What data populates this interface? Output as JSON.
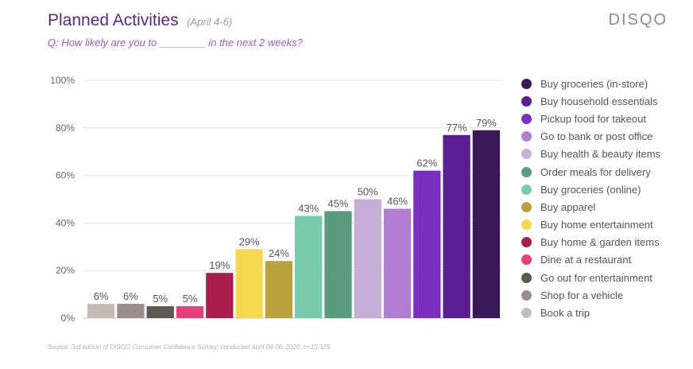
{
  "header": {
    "title": "Planned Activities",
    "date_range": "(April 4-6)",
    "subtitle": "Q: How likely are you to ________ in the next 2 weeks?",
    "brand": "DISQO"
  },
  "footer": {
    "source": "Source: 3rd edition of DISQO Consumer Confidence Survey; conducted April 04-06, 2020; n=10,925"
  },
  "chart_data": {
    "type": "bar",
    "title": "Planned Activities",
    "ylim": [
      0,
      100
    ],
    "yticks": [
      "0%",
      "20%",
      "40%",
      "60%",
      "80%",
      "100%"
    ],
    "grid": true,
    "legend_position": "right",
    "categories": [
      "Book a trip",
      "Shop for a vehicle",
      "Go out for entertainment",
      "Dine at a restaurant",
      "Buy home & garden items",
      "Buy home entertainment",
      "Buy apparel",
      "Buy groceries (online)",
      "Order meals for delivery",
      "Buy health & beauty items",
      "Go to bank or post office",
      "Pickup food for takeout",
      "Buy household essentials",
      "Buy groceries (in-store)"
    ],
    "values": [
      6,
      6,
      5,
      5,
      19,
      29,
      24,
      43,
      45,
      50,
      46,
      62,
      77,
      79
    ],
    "value_labels": [
      "6%",
      "6%",
      "5%",
      "5%",
      "19%",
      "29%",
      "24%",
      "43%",
      "45%",
      "50%",
      "46%",
      "62%",
      "77%",
      "79%"
    ],
    "colors": [
      "#c4bcb5",
      "#9a8d8a",
      "#5e5850",
      "#e83e7b",
      "#ab1f4e",
      "#f6d94f",
      "#b9a23d",
      "#79cbad",
      "#5a9a7f",
      "#c7aed6",
      "#b07fd4",
      "#7b2fbf",
      "#5a1d93",
      "#3b1857"
    ],
    "legend": [
      {
        "label": "Buy groceries (in-store)",
        "color": "#3b1857"
      },
      {
        "label": "Buy household essentials",
        "color": "#5a1d93"
      },
      {
        "label": "Pickup food for takeout",
        "color": "#7b2fbf"
      },
      {
        "label": "Go to bank or post office",
        "color": "#b07fd4"
      },
      {
        "label": "Buy health & beauty items",
        "color": "#c7aed6"
      },
      {
        "label": "Order meals for delivery",
        "color": "#5a9a7f"
      },
      {
        "label": "Buy groceries (online)",
        "color": "#79cbad"
      },
      {
        "label": "Buy apparel",
        "color": "#b9a23d"
      },
      {
        "label": "Buy home entertainment",
        "color": "#f6d94f"
      },
      {
        "label": "Buy home & garden items",
        "color": "#ab1f4e"
      },
      {
        "label": "Dine at a restaurant",
        "color": "#e83e7b"
      },
      {
        "label": "Go out for entertainment",
        "color": "#5e5850"
      },
      {
        "label": "Shop for a vehicle",
        "color": "#9a8d8a"
      },
      {
        "label": "Book a trip",
        "color": "#c4bcb5"
      }
    ]
  }
}
